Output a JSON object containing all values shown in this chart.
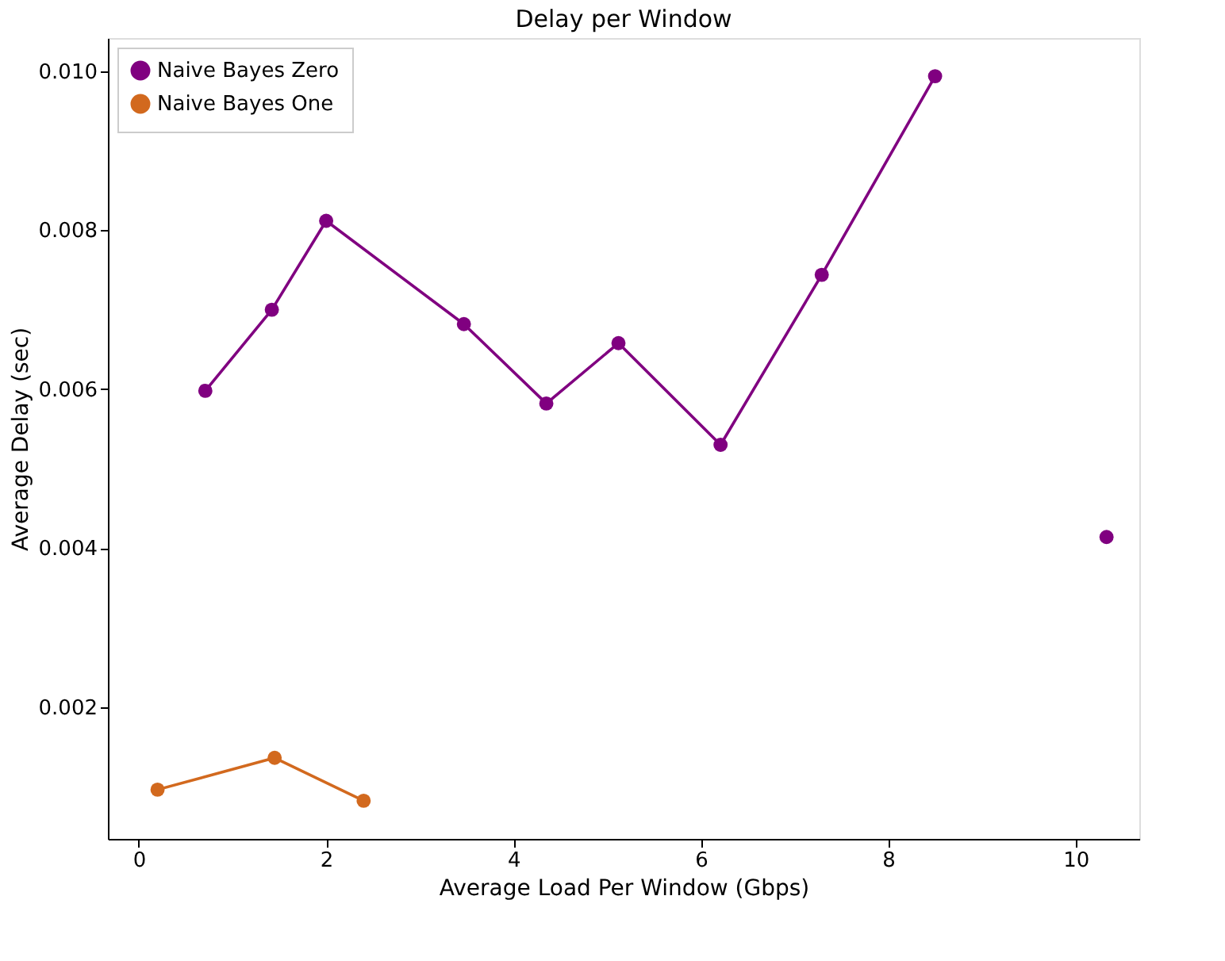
{
  "chart_data": {
    "type": "line",
    "title": "Delay per Window",
    "xlabel": "Average Load Per Window (Gbps)",
    "ylabel": "Average Delay (sec)",
    "series": [
      {
        "name": "Naive Bayes Zero",
        "color": "#800080",
        "x": [
          0.71,
          1.42,
          2.0,
          3.47,
          4.35,
          5.12,
          6.21,
          7.29,
          8.5,
          9.4,
          10.33
        ],
        "values": [
          0.00598,
          0.007,
          0.00812,
          0.00682,
          0.00582,
          0.00658,
          0.0053,
          0.00744,
          0.00994,
          null,
          0.00414
        ]
      },
      {
        "name": "Naive Bayes One",
        "color": "#d2691e",
        "x": [
          0.2,
          1.45,
          2.4
        ],
        "values": [
          0.00096,
          0.00136,
          0.00082
        ]
      }
    ],
    "xlim": [
      -0.33,
      10.68
    ],
    "xticks": [
      0,
      2,
      4,
      6,
      8,
      10
    ],
    "ylim": [
      0.00034,
      0.01042
    ],
    "yticks": [
      0.002,
      0.004,
      0.006,
      0.008,
      {
        "value": 0.01,
        "label": "0.010"
      }
    ],
    "grid": false,
    "legend": "top left",
    "marker": "circle",
    "line_style": "solid"
  }
}
